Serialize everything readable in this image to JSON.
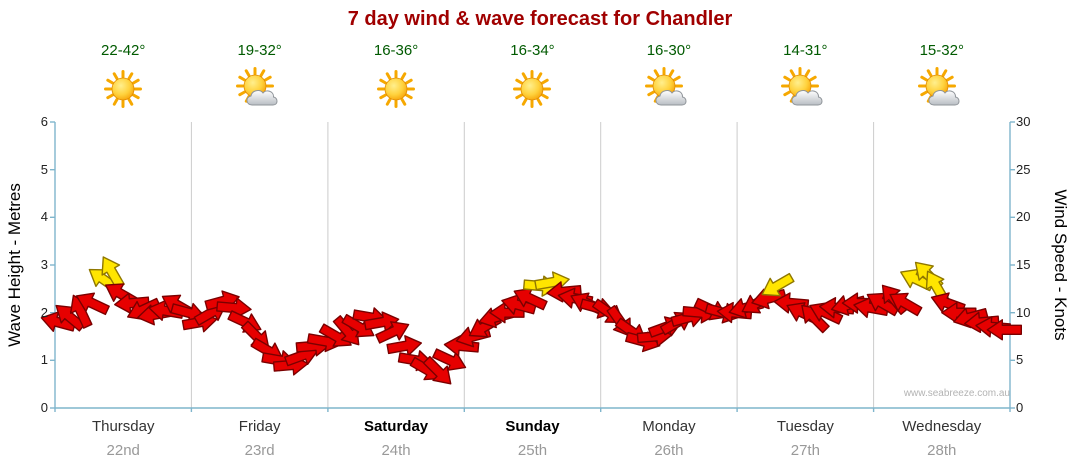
{
  "title": "7 day wind & wave forecast for Chandler",
  "watermark": "www.seabreeze.com.au",
  "axes": {
    "left_label": "Wave Height - Metres",
    "right_label": "Wind Speed - Knots",
    "left_ticks": [
      0,
      1,
      2,
      3,
      4,
      5,
      6
    ],
    "right_ticks": [
      0,
      5,
      10,
      15,
      20,
      25,
      30
    ]
  },
  "days": [
    {
      "name": "Thursday",
      "date": "22nd",
      "temp": "22-42°",
      "icon": "sun",
      "bold": false
    },
    {
      "name": "Friday",
      "date": "23rd",
      "temp": "19-32°",
      "icon": "sun-cloud",
      "bold": false
    },
    {
      "name": "Saturday",
      "date": "24th",
      "temp": "16-36°",
      "icon": "sun",
      "bold": true
    },
    {
      "name": "Sunday",
      "date": "25th",
      "temp": "16-34°",
      "icon": "sun",
      "bold": true
    },
    {
      "name": "Monday",
      "date": "26th",
      "temp": "16-30°",
      "icon": "sun-cloud",
      "bold": false
    },
    {
      "name": "Tuesday",
      "date": "27th",
      "temp": "14-31°",
      "icon": "sun-cloud",
      "bold": false
    },
    {
      "name": "Wednesday",
      "date": "28th",
      "temp": "15-32°",
      "icon": "sun-cloud",
      "bold": false
    }
  ],
  "chart_data": {
    "type": "scatter",
    "title": "7 day wind & wave forecast for Chandler",
    "x_axis": {
      "categories": [
        "Thursday 22nd",
        "Friday 23rd",
        "Saturday 24th",
        "Sunday 25th",
        "Monday 26th",
        "Tuesday 27th",
        "Wednesday 28th"
      ],
      "hours_span": [
        0,
        168
      ],
      "grid": "vertical lines at day boundaries"
    },
    "y_left": {
      "label": "Wave Height - Metres",
      "range": [
        0,
        6
      ],
      "ticks": [
        0,
        1,
        2,
        3,
        4,
        5,
        6
      ]
    },
    "y_right": {
      "label": "Wind Speed - Knots",
      "range": [
        0,
        30
      ],
      "ticks": [
        0,
        5,
        10,
        15,
        20,
        25,
        30
      ]
    },
    "legend": "none",
    "marker": "wind arrow rotated to wind direction; red = normal, yellow = stronger gust",
    "colors": {
      "normal": "#e60000",
      "normal_stroke": "#7a0000",
      "strong": "#ffe500",
      "strong_stroke": "#8f7700"
    },
    "point_format": [
      "hours_from_start",
      "wind_knots",
      "arrow_rotation_deg",
      "is_strong"
    ],
    "series": [
      {
        "name": "Wind speed (knots)",
        "points": [
          [
            0.5,
            9,
            195,
            0
          ],
          [
            2.5,
            9.6,
            220,
            0
          ],
          [
            4.5,
            10.2,
            245,
            0
          ],
          [
            6.5,
            11,
            205,
            0
          ],
          [
            8.5,
            13.5,
            215,
            1
          ],
          [
            10,
            14.3,
            240,
            1
          ],
          [
            11.5,
            12,
            210,
            0
          ],
          [
            13.5,
            11,
            175,
            0
          ],
          [
            15.5,
            10.3,
            155,
            0
          ],
          [
            17.5,
            9.8,
            170,
            0
          ],
          [
            19.5,
            10.2,
            190,
            0
          ],
          [
            21.5,
            10.8,
            210,
            0
          ],
          [
            23.5,
            10,
            15,
            0
          ],
          [
            25.5,
            9,
            -10,
            0
          ],
          [
            27.5,
            10,
            -30,
            0
          ],
          [
            29.5,
            11.2,
            -15,
            0
          ],
          [
            31.5,
            10.5,
            5,
            0
          ],
          [
            33.5,
            9,
            25,
            0
          ],
          [
            35.5,
            7.5,
            45,
            0
          ],
          [
            37.5,
            6,
            30,
            0
          ],
          [
            39.5,
            5,
            10,
            0
          ],
          [
            41.5,
            4.5,
            -5,
            0
          ],
          [
            43.5,
            5.5,
            -20,
            0
          ],
          [
            45.5,
            6.5,
            -5,
            0
          ],
          [
            47.5,
            7,
            10,
            0
          ],
          [
            49.5,
            7.5,
            30,
            0
          ],
          [
            51.5,
            8,
            50,
            0
          ],
          [
            53.5,
            8.5,
            30,
            0
          ],
          [
            55.5,
            9.5,
            10,
            0
          ],
          [
            57.5,
            9,
            -10,
            0
          ],
          [
            59.5,
            8,
            -25,
            0
          ],
          [
            61.5,
            6.5,
            -10,
            0
          ],
          [
            63.5,
            5,
            10,
            0
          ],
          [
            65.5,
            4,
            30,
            0
          ],
          [
            67.5,
            3.8,
            45,
            0
          ],
          [
            69.5,
            5,
            25,
            0
          ],
          [
            71.5,
            6.5,
            185,
            0
          ],
          [
            73.5,
            7.5,
            165,
            0
          ],
          [
            75.5,
            8.5,
            150,
            0
          ],
          [
            77.5,
            9.5,
            165,
            0
          ],
          [
            79.5,
            10,
            180,
            0
          ],
          [
            81.5,
            10.8,
            195,
            0
          ],
          [
            83.5,
            11.5,
            205,
            0
          ],
          [
            85.5,
            12.8,
            5,
            1
          ],
          [
            87.5,
            13.2,
            -10,
            1
          ],
          [
            89.5,
            12.2,
            175,
            0
          ],
          [
            91.5,
            11.5,
            190,
            0
          ],
          [
            93.5,
            11,
            205,
            0
          ],
          [
            95.5,
            10.5,
            15,
            0
          ],
          [
            97.5,
            10,
            35,
            0
          ],
          [
            99.5,
            9,
            55,
            0
          ],
          [
            101.5,
            8,
            35,
            0
          ],
          [
            103.5,
            7,
            15,
            0
          ],
          [
            105.5,
            7.5,
            -5,
            0
          ],
          [
            107.5,
            8.5,
            -20,
            0
          ],
          [
            109.5,
            9,
            -30,
            0
          ],
          [
            111.5,
            9.5,
            -15,
            0
          ],
          [
            113.5,
            10,
            5,
            0
          ],
          [
            115.5,
            10.3,
            25,
            0
          ],
          [
            117.5,
            10,
            15,
            0
          ],
          [
            119.5,
            10,
            185,
            0
          ],
          [
            121.5,
            10.5,
            165,
            0
          ],
          [
            123.5,
            11,
            150,
            0
          ],
          [
            125.5,
            11.5,
            165,
            0
          ],
          [
            127,
            12.8,
            150,
            1
          ],
          [
            129.5,
            11,
            185,
            0
          ],
          [
            131.5,
            10,
            205,
            0
          ],
          [
            133.5,
            9.5,
            225,
            0
          ],
          [
            135.5,
            10,
            205,
            0
          ],
          [
            137.5,
            10.5,
            185,
            0
          ],
          [
            139.5,
            10.8,
            165,
            0
          ],
          [
            141.5,
            11,
            180,
            0
          ],
          [
            143.5,
            10.5,
            190,
            0
          ],
          [
            145.5,
            11,
            210,
            0
          ],
          [
            147.5,
            11.5,
            230,
            0
          ],
          [
            149.5,
            11,
            210,
            0
          ],
          [
            151.5,
            13.5,
            205,
            1
          ],
          [
            153.5,
            14,
            225,
            1
          ],
          [
            155,
            12.8,
            240,
            1
          ],
          [
            157,
            11,
            200,
            0
          ],
          [
            159,
            10,
            180,
            0
          ],
          [
            161,
            9.5,
            165,
            0
          ],
          [
            163,
            9,
            175,
            0
          ],
          [
            165,
            8.5,
            185,
            0
          ],
          [
            167,
            8.2,
            180,
            0
          ]
        ]
      }
    ]
  }
}
